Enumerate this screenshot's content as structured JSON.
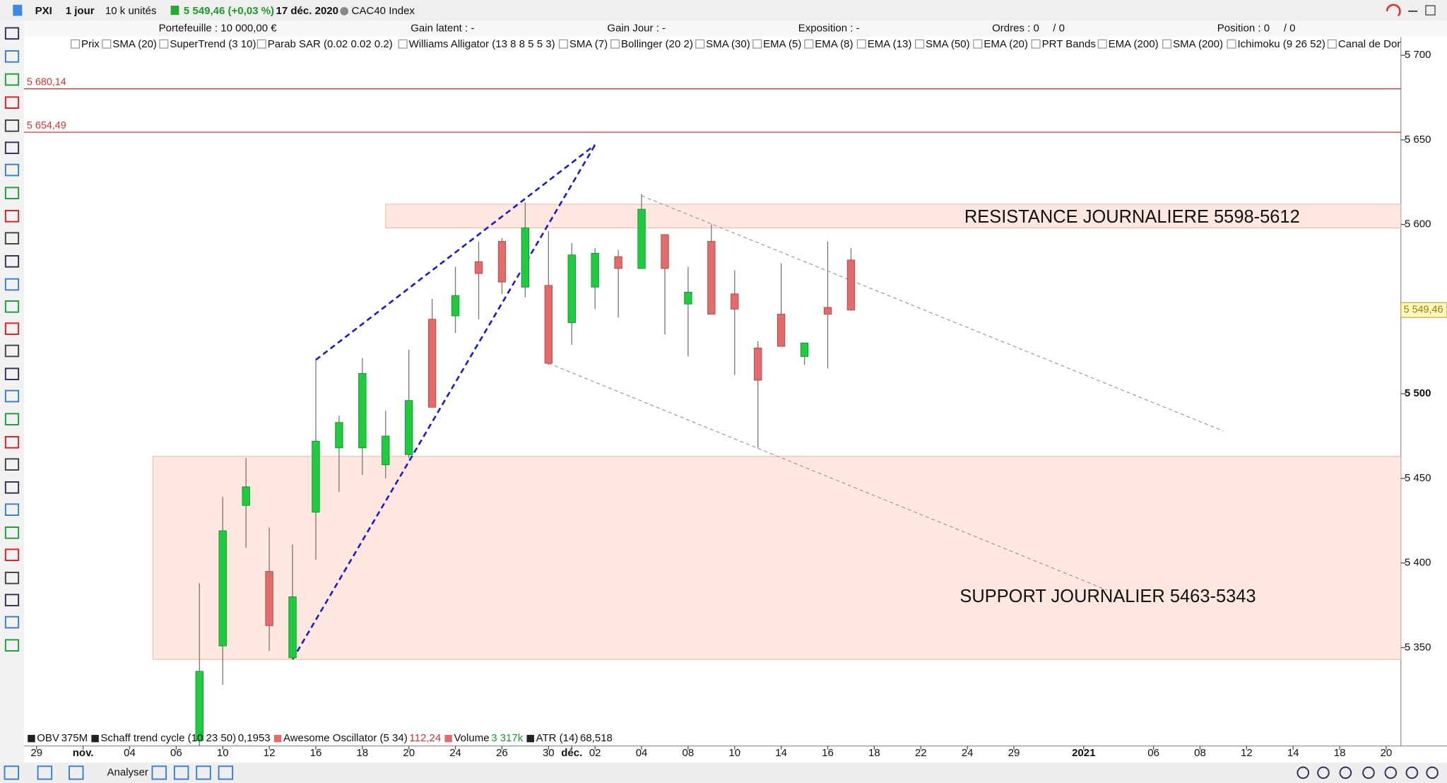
{
  "toolbar": {
    "symbol": "PXI",
    "period": "1 jour",
    "units": "10 k unités",
    "quote": "5 549,46 (+0,03 %)",
    "date": "17 déc. 2020",
    "instrument": "CAC40 Index"
  },
  "account": {
    "portfolio": "Portefeuille : 10 000,00 €",
    "latent": "Gain latent : -",
    "day": "Gain Jour : -",
    "exposure": "Exposition : -",
    "orders": "Ordres : 0",
    "orders2": "/ 0",
    "position": "Position : 0",
    "position2": "/ 0"
  },
  "indicators": [
    "Prix",
    "SMA (20)",
    "SuperTrend (3 10)",
    "Parab SAR (0.02 0.02 0.2)",
    "Williams Alligator (13 8 8 5 5 3)",
    "SMA (7)",
    "Bollinger (20 2)",
    "SMA (30)",
    "EMA (5)",
    "EMA (8)",
    "EMA (13)",
    "SMA (50)",
    "EMA (20)",
    "PRT Bands",
    "EMA (200)",
    "SMA (200)",
    "Ichimoku (9 26 52)",
    "Canal de Don"
  ],
  "lower_indicators": [
    {
      "name": "OBV",
      "value": "375M"
    },
    {
      "name": "Schaff trend cycle (10 23 50)",
      "value": "0,1953"
    },
    {
      "name": "Awesome Oscillator (5 34)",
      "value": "112,24"
    },
    {
      "name": "Volume",
      "value": "3 317k"
    },
    {
      "name": "ATR (14)",
      "value": "68,518"
    }
  ],
  "bottom_bar": {
    "analyse": "Analyser"
  },
  "chart_data": {
    "type": "candlestick",
    "open": [
      5295,
      5351,
      5434,
      5395,
      5344,
      5430,
      5468,
      5468,
      5458,
      5464,
      5544,
      5546,
      5578,
      5590,
      5563,
      5564,
      5542,
      5563,
      5581,
      5574,
      5594,
      5553,
      5590,
      5559,
      5527,
      5547,
      5522,
      5551,
      5579
    ],
    "high": [
      5388,
      5439,
      5462,
      5421,
      5411,
      5520,
      5487,
      5521,
      5490,
      5526,
      5556,
      5575,
      5590,
      5592,
      5613,
      5596,
      5589,
      5586,
      5585,
      5618,
      5594,
      5575,
      5600,
      5573,
      5531,
      5577,
      5530,
      5590,
      5586
    ],
    "low": [
      5290,
      5328,
      5409,
      5348,
      5343,
      5402,
      5442,
      5452,
      5450,
      5462,
      5492,
      5536,
      5544,
      5559,
      5557,
      5517,
      5529,
      5550,
      5545,
      5574,
      5535,
      5522,
      5547,
      5511,
      5468,
      5528,
      5517,
      5515,
      5549
    ],
    "close": [
      5336,
      5419,
      5445,
      5363,
      5380,
      5472,
      5483,
      5512,
      5475,
      5496,
      5492,
      5558,
      5571,
      5566,
      5598,
      5518,
      5582,
      5583,
      5574,
      5609,
      5574,
      5560,
      5547,
      5550,
      5508,
      5528,
      5530,
      5547,
      5549.46
    ],
    "up_color": "#1fcc3f",
    "down_color": "#e26b6b",
    "last_price": {
      "value": 5549.46,
      "label": "5 549,46"
    },
    "ylim": [
      5299,
      5702
    ],
    "yticks": [
      {
        "value": 5350,
        "label": "5 350"
      },
      {
        "value": 5400,
        "label": "5 400"
      },
      {
        "value": 5450,
        "label": "5 450"
      },
      {
        "value": 5500,
        "label": "5 500"
      },
      {
        "value": 5550,
        "label": "5 550"
      },
      {
        "value": 5600,
        "label": "5 600"
      },
      {
        "value": 5650,
        "label": "5 650"
      },
      {
        "value": 5700,
        "label": "5 700"
      }
    ],
    "xlim": [
      -7.54,
      51.63
    ],
    "xticks": [
      {
        "value": -7,
        "label": "29"
      },
      {
        "value": -5,
        "label": "nov."
      },
      {
        "value": -3,
        "label": "04"
      },
      {
        "value": -1,
        "label": "06"
      },
      {
        "value": 1,
        "label": "10"
      },
      {
        "value": 3,
        "label": "12"
      },
      {
        "value": 5,
        "label": "16"
      },
      {
        "value": 7,
        "label": "18"
      },
      {
        "value": 9,
        "label": "20"
      },
      {
        "value": 11,
        "label": "24"
      },
      {
        "value": 13,
        "label": "26"
      },
      {
        "value": 15,
        "label": "30"
      },
      {
        "value": 16,
        "label": "déc."
      },
      {
        "value": 17,
        "label": "02"
      },
      {
        "value": 19,
        "label": "04"
      },
      {
        "value": 21,
        "label": "08"
      },
      {
        "value": 23,
        "label": "10"
      },
      {
        "value": 25,
        "label": "14"
      },
      {
        "value": 27,
        "label": "16"
      },
      {
        "value": 29,
        "label": "18"
      },
      {
        "value": 31,
        "label": "22"
      },
      {
        "value": 33,
        "label": "24"
      },
      {
        "value": 35,
        "label": "29"
      },
      {
        "value": 38,
        "label": "2021"
      },
      {
        "value": 41,
        "label": "06"
      },
      {
        "value": 43,
        "label": "08"
      },
      {
        "value": 45,
        "label": "12"
      },
      {
        "value": 47,
        "label": "14"
      },
      {
        "value": 49,
        "label": "18"
      },
      {
        "value": 51,
        "label": "20"
      }
    ],
    "levels": [
      {
        "value": 5680.14,
        "label": "5 680,14",
        "color": "#e03030"
      },
      {
        "value": 5654.49,
        "label": "5 654,49",
        "color": "#e03030"
      }
    ],
    "zones": [
      {
        "from": 5598,
        "to": 5612,
        "x": 8,
        "label": "RESISTANCE JOURNALIERE 5598-5612"
      },
      {
        "from": 5343,
        "to": 5463,
        "x": -2,
        "label": "SUPPORT JOURNALIER 5463-5343"
      }
    ],
    "trendlines": [
      {
        "x": [
          4,
          17
        ],
        "y": [
          5343,
          5647
        ],
        "color": "#1a1ad0"
      },
      {
        "x": [
          5,
          17
        ],
        "y": [
          5520,
          5647
        ],
        "color": "#1a1ad0"
      },
      {
        "x": [
          19,
          44
        ],
        "y": [
          5617,
          5478
        ],
        "color": "#999999"
      },
      {
        "x": [
          15,
          39
        ],
        "y": [
          5518,
          5384
        ],
        "color": "#999999"
      }
    ]
  }
}
